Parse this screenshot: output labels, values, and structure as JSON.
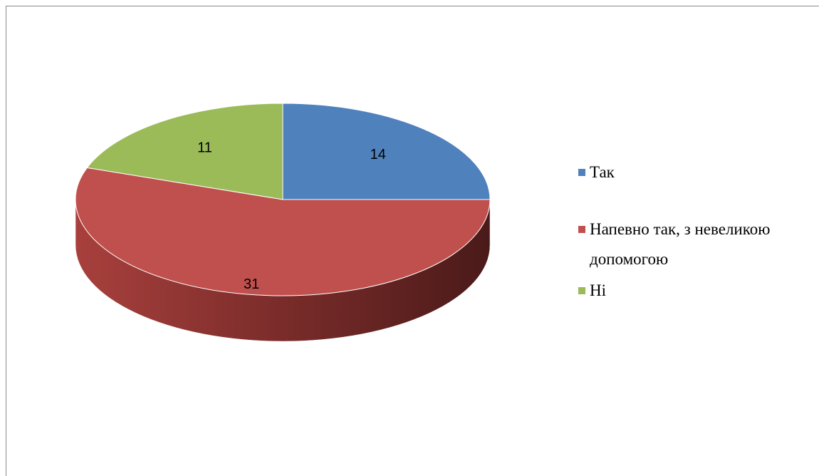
{
  "chart_data": {
    "type": "pie",
    "categories": [
      "Так",
      "Напевно так, з невеликою допомогою",
      "Ні"
    ],
    "series": [
      {
        "values": [
          14,
          31,
          11
        ],
        "colors": [
          "#4f81bd",
          "#c0504d",
          "#9bbb59"
        ]
      }
    ],
    "legend": "right"
  }
}
